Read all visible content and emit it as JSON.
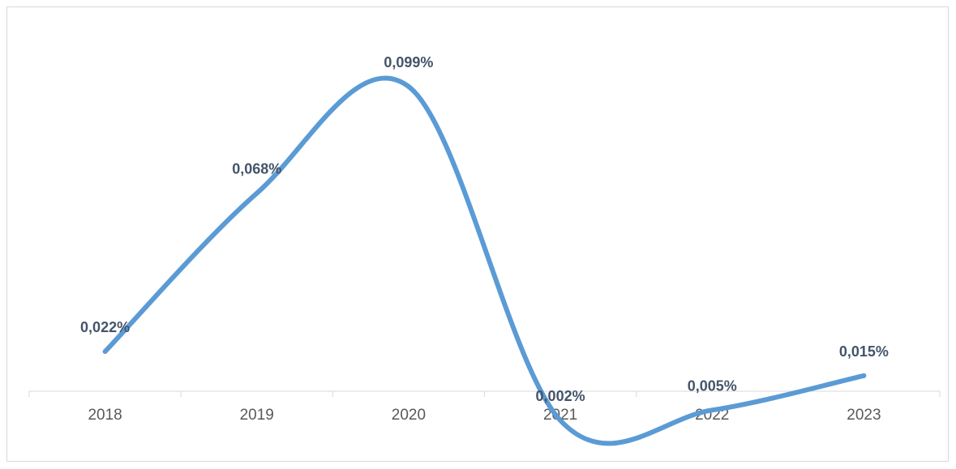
{
  "chart_data": {
    "type": "line",
    "title": "",
    "xlabel": "",
    "ylabel": "",
    "categories": [
      "2018",
      "2019",
      "2020",
      "2021",
      "2022",
      "2023"
    ],
    "series": [
      {
        "values": [
          0.022,
          0.068,
          0.099,
          0.002,
          0.005,
          0.015
        ],
        "labels": [
          "0,022%",
          "0,068%",
          "0,099%",
          "0,002%",
          "0,005%",
          "0,015%"
        ],
        "color": "#5b9bd5",
        "smooth": true
      }
    ],
    "ylim": [
      -0.01,
      0.11
    ],
    "axis_color": "#d9d9d9",
    "label_color": "#44546a",
    "tick_color": "#595959",
    "grid": false,
    "legend": "none"
  }
}
